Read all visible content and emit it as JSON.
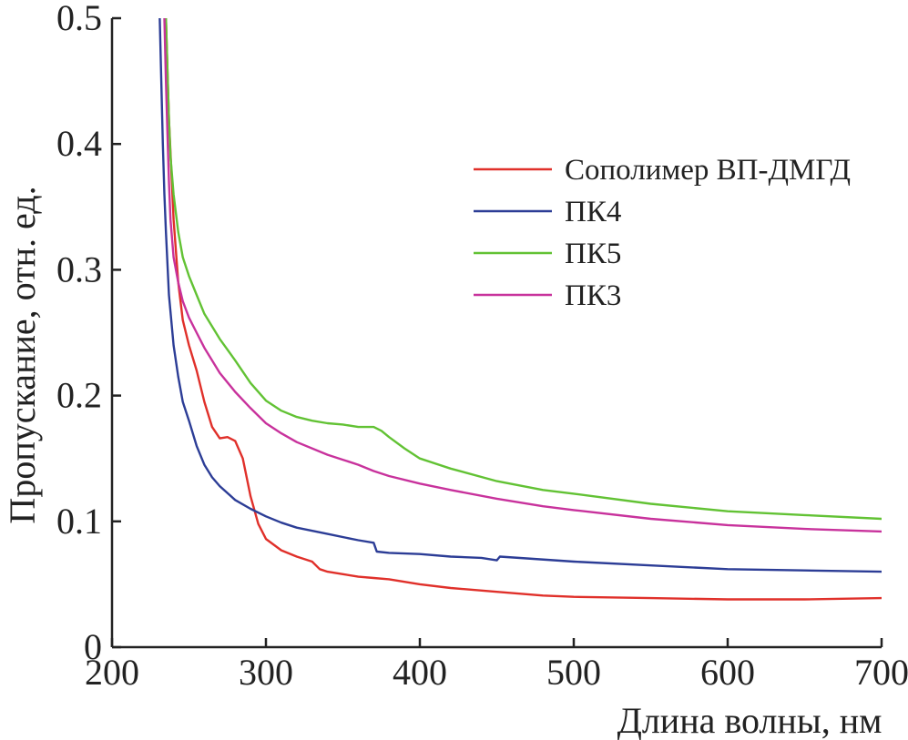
{
  "chart_data": {
    "type": "line",
    "xlabel": "Длина волны, нм",
    "ylabel": "Пропускание, отн. ед.",
    "xlim": [
      200,
      700
    ],
    "ylim": [
      0,
      0.5
    ],
    "xticks": [
      200,
      300,
      400,
      500,
      600,
      700
    ],
    "yticks": [
      0,
      0.1,
      0.2,
      0.3,
      0.4,
      0.5
    ],
    "ytick_labels": [
      "0",
      "0.1",
      "0.2",
      "0.3",
      "0.4",
      "0.5"
    ],
    "grid": false,
    "legend_position": "upper-right",
    "series": [
      {
        "name": "Сополимер ВП-ДМГД",
        "color": "#e0302a",
        "x": [
          235,
          237,
          240,
          243,
          246,
          250,
          255,
          260,
          265,
          270,
          275,
          280,
          285,
          290,
          295,
          300,
          310,
          320,
          330,
          335,
          340,
          350,
          360,
          370,
          380,
          400,
          420,
          450,
          480,
          500,
          550,
          600,
          650,
          700
        ],
        "y": [
          0.5,
          0.42,
          0.34,
          0.29,
          0.26,
          0.24,
          0.22,
          0.195,
          0.175,
          0.166,
          0.167,
          0.164,
          0.15,
          0.12,
          0.098,
          0.086,
          0.077,
          0.072,
          0.068,
          0.062,
          0.06,
          0.058,
          0.056,
          0.055,
          0.054,
          0.05,
          0.047,
          0.044,
          0.041,
          0.04,
          0.039,
          0.038,
          0.038,
          0.039
        ]
      },
      {
        "name": "ПК4",
        "color": "#2c3d96",
        "x": [
          231,
          232,
          233,
          234,
          235,
          237,
          240,
          243,
          246,
          250,
          255,
          260,
          265,
          270,
          280,
          290,
          300,
          310,
          320,
          340,
          360,
          370,
          372,
          380,
          400,
          420,
          440,
          450,
          452,
          500,
          550,
          600,
          650,
          700
        ],
        "y": [
          0.5,
          0.45,
          0.4,
          0.36,
          0.33,
          0.28,
          0.24,
          0.215,
          0.195,
          0.18,
          0.16,
          0.145,
          0.135,
          0.128,
          0.117,
          0.11,
          0.104,
          0.099,
          0.095,
          0.09,
          0.085,
          0.083,
          0.076,
          0.075,
          0.074,
          0.072,
          0.071,
          0.069,
          0.072,
          0.068,
          0.065,
          0.062,
          0.061,
          0.06
        ]
      },
      {
        "name": "ПК5",
        "color": "#62c234",
        "x": [
          235,
          236,
          237,
          238,
          240,
          243,
          246,
          250,
          255,
          260,
          270,
          280,
          290,
          300,
          310,
          320,
          330,
          340,
          350,
          360,
          370,
          375,
          380,
          390,
          400,
          420,
          450,
          480,
          500,
          550,
          600,
          650,
          700
        ],
        "y": [
          0.5,
          0.46,
          0.42,
          0.39,
          0.36,
          0.33,
          0.31,
          0.295,
          0.28,
          0.265,
          0.245,
          0.228,
          0.21,
          0.196,
          0.188,
          0.183,
          0.18,
          0.178,
          0.177,
          0.175,
          0.175,
          0.172,
          0.167,
          0.158,
          0.15,
          0.142,
          0.132,
          0.125,
          0.122,
          0.114,
          0.108,
          0.105,
          0.102
        ]
      },
      {
        "name": "ПК3",
        "color": "#c8329c",
        "x": [
          234,
          235,
          236,
          237,
          238,
          240,
          243,
          246,
          250,
          255,
          260,
          270,
          280,
          290,
          300,
          310,
          320,
          340,
          350,
          360,
          370,
          380,
          400,
          420,
          450,
          480,
          500,
          550,
          600,
          650,
          700
        ],
        "y": [
          0.5,
          0.45,
          0.41,
          0.37,
          0.34,
          0.31,
          0.29,
          0.275,
          0.262,
          0.25,
          0.238,
          0.218,
          0.203,
          0.19,
          0.178,
          0.17,
          0.163,
          0.153,
          0.149,
          0.145,
          0.14,
          0.136,
          0.13,
          0.125,
          0.118,
          0.112,
          0.109,
          0.102,
          0.097,
          0.094,
          0.092
        ]
      }
    ]
  }
}
